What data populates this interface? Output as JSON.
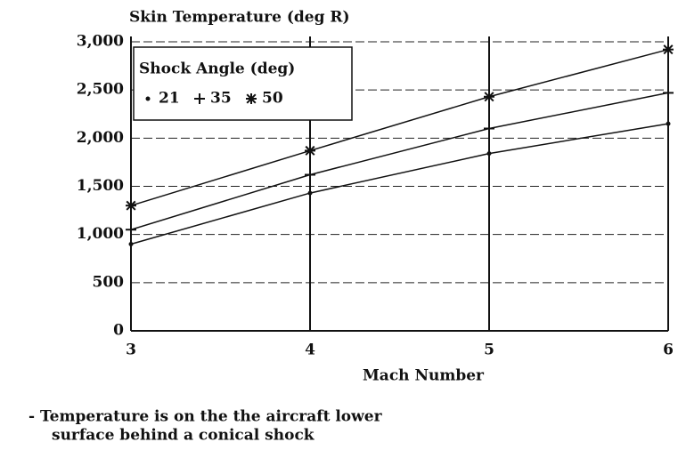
{
  "chart_data": {
    "type": "line",
    "y_label": "Skin Temperature (deg R)",
    "x_label": "Mach Number",
    "legend_title": "Shock Angle (deg)",
    "x": [
      3,
      4,
      5,
      6
    ],
    "series": [
      {
        "name": "21",
        "color": "#111111",
        "marker": "dot",
        "values": [
          900,
          1430,
          1840,
          2150
        ]
      },
      {
        "name": "35",
        "color": "#111111",
        "marker": "plus",
        "values": [
          1050,
          1620,
          2100,
          2470
        ]
      },
      {
        "name": "50",
        "color": "#111111",
        "marker": "asterisk",
        "values": [
          1300,
          1870,
          2430,
          2920
        ]
      }
    ],
    "xlim": [
      3,
      6
    ],
    "xticks": [
      3,
      4,
      5,
      6
    ],
    "ylim": [
      0,
      3000
    ],
    "yticks": [
      0,
      500,
      {
        "value": 1000,
        "label": "1,000"
      },
      {
        "value": 1500,
        "label": "1,500"
      },
      {
        "value": 2000,
        "label": "2,000"
      },
      {
        "value": 2500,
        "label": "2,500"
      },
      {
        "value": 3000,
        "label": "3,000"
      }
    ],
    "grid": true,
    "notes": [
      "- Temperature is on the the aircraft lower",
      "surface behind a conical shock"
    ]
  }
}
